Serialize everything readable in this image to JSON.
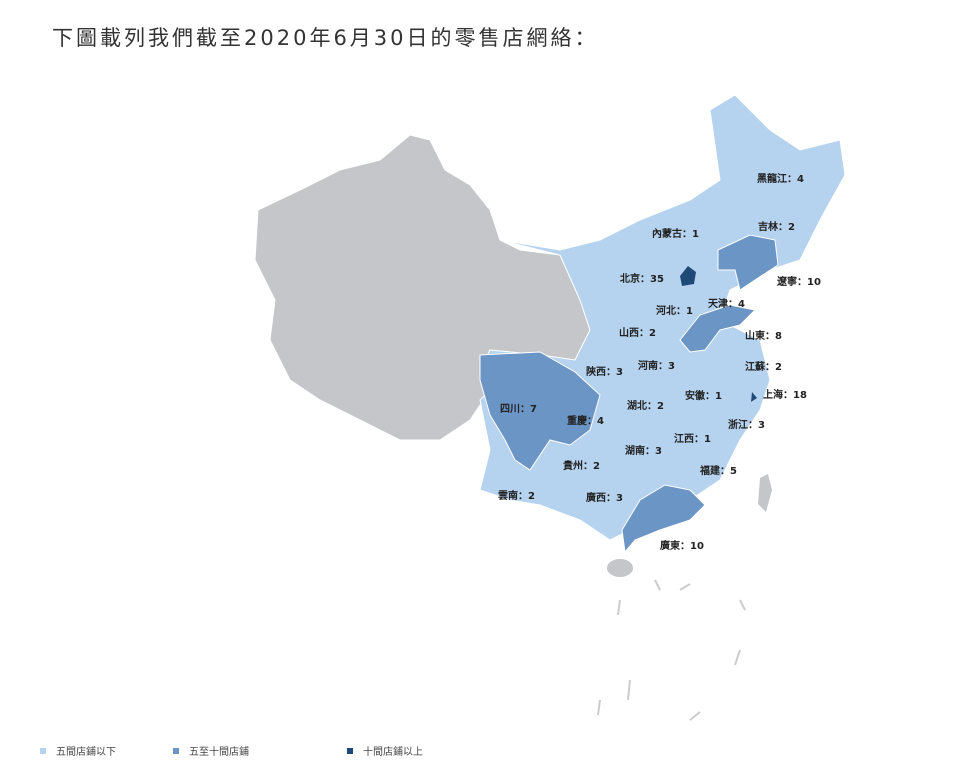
{
  "title": "下圖載列我們截至2020年6月30日的零售店網絡：",
  "colors": {
    "low": "#b5d2ee",
    "mid": "#6b95c5",
    "high": "#1f4a78",
    "none": "#c4c6ca"
  },
  "provinces": [
    {
      "name": "黑龍江",
      "stores": 4,
      "tier": "low"
    },
    {
      "name": "吉林",
      "stores": 2,
      "tier": "low"
    },
    {
      "name": "內蒙古",
      "stores": 1,
      "tier": "low"
    },
    {
      "name": "遼寧",
      "stores": 10,
      "tier": "mid"
    },
    {
      "name": "北京",
      "stores": 35,
      "tier": "high"
    },
    {
      "name": "天津",
      "stores": 4,
      "tier": "low"
    },
    {
      "name": "河北",
      "stores": 1,
      "tier": "low"
    },
    {
      "name": "山西",
      "stores": 2,
      "tier": "low"
    },
    {
      "name": "山東",
      "stores": 8,
      "tier": "mid"
    },
    {
      "name": "陝西",
      "stores": 3,
      "tier": "low"
    },
    {
      "name": "河南",
      "stores": 3,
      "tier": "low"
    },
    {
      "name": "江蘇",
      "stores": 2,
      "tier": "low"
    },
    {
      "name": "上海",
      "stores": 18,
      "tier": "high"
    },
    {
      "name": "安徽",
      "stores": 1,
      "tier": "low"
    },
    {
      "name": "四川",
      "stores": 7,
      "tier": "mid"
    },
    {
      "name": "重慶",
      "stores": 4,
      "tier": "low"
    },
    {
      "name": "湖北",
      "stores": 2,
      "tier": "low"
    },
    {
      "name": "浙江",
      "stores": 3,
      "tier": "low"
    },
    {
      "name": "江西",
      "stores": 1,
      "tier": "low"
    },
    {
      "name": "湖南",
      "stores": 3,
      "tier": "low"
    },
    {
      "name": "貴州",
      "stores": 2,
      "tier": "low"
    },
    {
      "name": "福建",
      "stores": 5,
      "tier": "low"
    },
    {
      "name": "雲南",
      "stores": 2,
      "tier": "low"
    },
    {
      "name": "廣西",
      "stores": 3,
      "tier": "low"
    },
    {
      "name": "廣東",
      "stores": 10,
      "tier": "mid"
    }
  ],
  "legend": [
    {
      "label": "五間店鋪以下",
      "tier": "low"
    },
    {
      "label": "五至十間店鋪",
      "tier": "mid"
    },
    {
      "label": "十間店鋪以上",
      "tier": "high"
    }
  ]
}
